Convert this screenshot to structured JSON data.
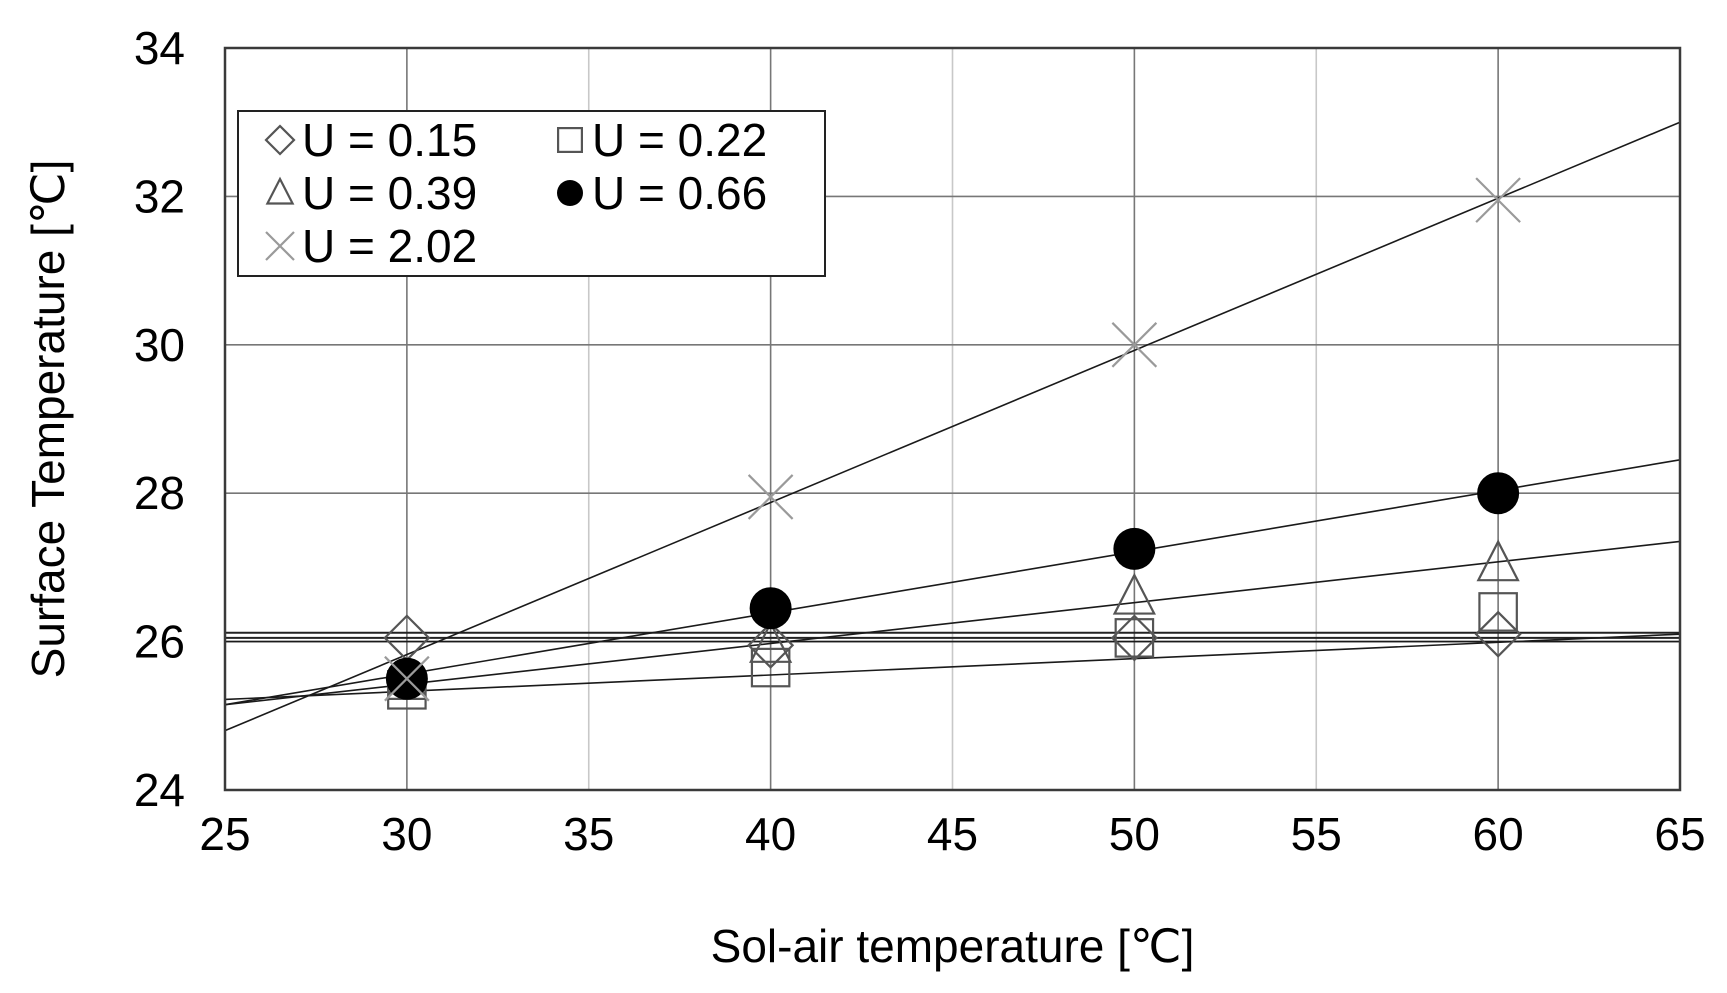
{
  "chart_data": {
    "type": "scatter",
    "title": "",
    "xlabel": "Sol-air temperature [℃]",
    "ylabel": "Surface Temperature [℃]",
    "xlim": [
      25,
      65
    ],
    "ylim": [
      24,
      34
    ],
    "xticks": [
      25,
      30,
      35,
      40,
      45,
      50,
      55,
      60,
      65
    ],
    "yticks": [
      24,
      26,
      28,
      30,
      32,
      34
    ],
    "grid": true,
    "legend_position": "top-left",
    "series": [
      {
        "name": "U = 0.15",
        "marker": "diamond",
        "color": "#555555",
        "x": [
          30,
          40,
          50,
          60
        ],
        "y": [
          26.05,
          25.95,
          26.05,
          26.1
        ],
        "trend": [
          26.0,
          26.0
        ]
      },
      {
        "name": "U = 0.22",
        "marker": "square",
        "color": "#555555",
        "x": [
          30,
          40,
          50,
          60
        ],
        "y": [
          25.35,
          25.65,
          26.05,
          26.4
        ],
        "trend": [
          25.22,
          26.1
        ]
      },
      {
        "name": "U = 0.39",
        "marker": "triangle",
        "color": "#555555",
        "x": [
          30,
          40,
          50,
          60
        ],
        "y": [
          25.45,
          25.95,
          26.6,
          27.05
        ],
        "trend": [
          25.15,
          27.35
        ]
      },
      {
        "name": "U = 0.66",
        "marker": "circle-filled",
        "color": "#000000",
        "x": [
          30,
          40,
          50,
          60
        ],
        "y": [
          25.5,
          26.45,
          27.25,
          28.0
        ],
        "trend": [
          25.15,
          28.45
        ]
      },
      {
        "name": "U = 2.02",
        "marker": "cross",
        "color": "#9a9a9a",
        "x": [
          30,
          40,
          50,
          60
        ],
        "y": [
          25.5,
          27.95,
          30.0,
          31.95
        ],
        "trend": [
          24.8,
          33.0
        ]
      }
    ],
    "reference_lines": [
      26.05,
      26.12
    ]
  }
}
